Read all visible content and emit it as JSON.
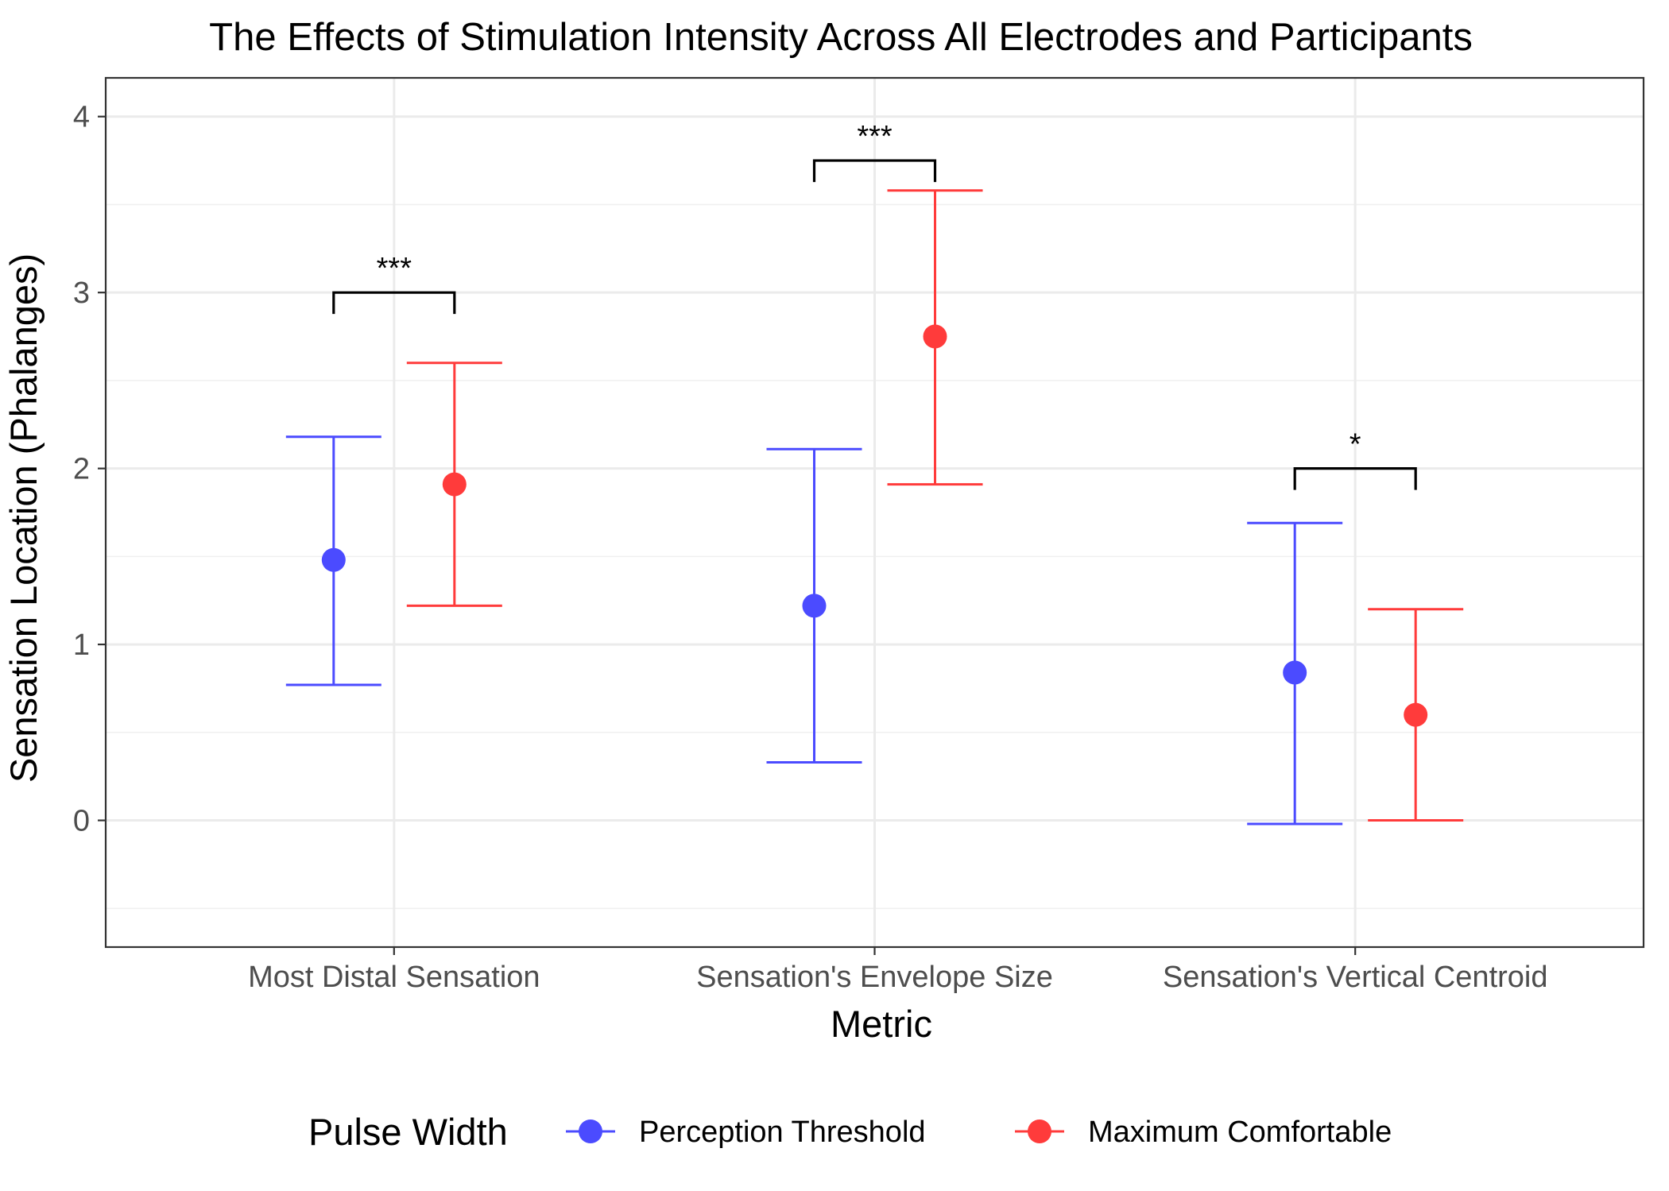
{
  "chart_data": {
    "type": "scatter",
    "subtype": "point-with-error-bars",
    "title": "The Effects of Stimulation Intensity Across All Electrodes and Participants",
    "xlabel": "Metric",
    "ylabel": "Sensation Location (Phalanges)",
    "categories": [
      "Most Distal Sensation",
      "Sensation's Envelope Size",
      "Sensation's Vertical Centroid"
    ],
    "ylim": [
      -0.72,
      4.22
    ],
    "y_ticks": [
      0,
      1,
      2,
      3,
      4
    ],
    "grid": true,
    "legend": {
      "title": "Pulse Width",
      "position": "bottom"
    },
    "series": [
      {
        "name": "Perception Threshold",
        "color": "#4B4BFF",
        "values": [
          1.48,
          1.22,
          0.84
        ],
        "lower": [
          0.77,
          0.33,
          -0.02
        ],
        "upper": [
          2.18,
          2.11,
          1.69
        ]
      },
      {
        "name": "Maximum Comfortable",
        "color": "#FF3B3B",
        "values": [
          1.91,
          2.75,
          0.6
        ],
        "lower": [
          1.22,
          1.91,
          0.0
        ],
        "upper": [
          2.6,
          3.58,
          1.2
        ]
      }
    ],
    "significance": [
      {
        "category_index": 0,
        "label": "***",
        "y": 3.0
      },
      {
        "category_index": 1,
        "label": "***",
        "y": 3.75
      },
      {
        "category_index": 2,
        "label": "*",
        "y": 2.0
      }
    ]
  }
}
